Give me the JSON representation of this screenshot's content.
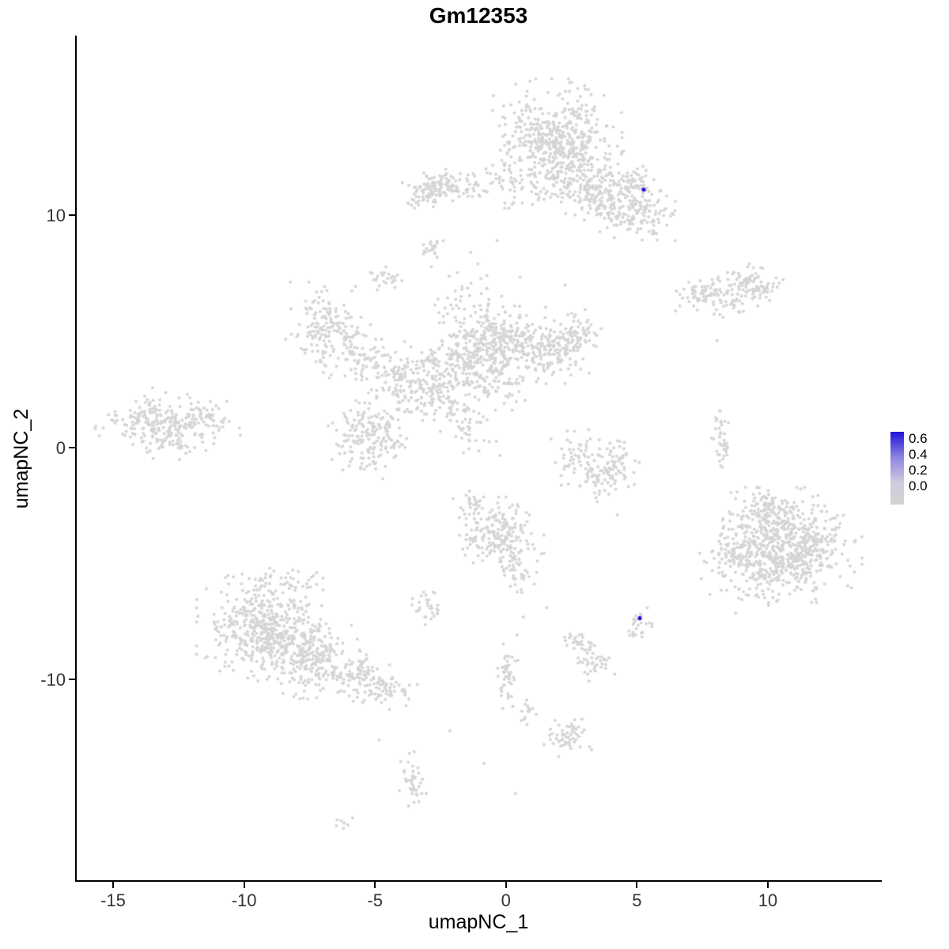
{
  "chart_data": {
    "type": "scatter",
    "title": "Gm12353",
    "xlabel": "umapNC_1",
    "ylabel": "umapNC_2",
    "x_range": [
      -16.45,
      14.35
    ],
    "y_range": [
      -18.7,
      17.73
    ],
    "x_ticks": {
      "values": [
        -15,
        -10,
        -5,
        0,
        5,
        10
      ],
      "labels": [
        "-15",
        "-10",
        "-5",
        "0",
        "5",
        "10"
      ]
    },
    "y_ticks": {
      "values": [
        10,
        0,
        -10
      ],
      "labels": [
        "10",
        "0",
        "-10"
      ]
    },
    "point_color": "#d5d5d5",
    "highlight_color": "#2414d6",
    "background": "#ffffff",
    "axis_color": "#000000",
    "seed": 7,
    "legend": {
      "ticks": [
        "0.6",
        "0.4",
        "0.2",
        "0.0"
      ],
      "low_color": "#d3d3d3",
      "high_color": "#1f14d6"
    },
    "clusters_columns": [
      "center_x",
      "center_y",
      "sd_x",
      "sd_y",
      "n_points",
      "rot_deg"
    ],
    "clusters": [
      [
        1.9,
        13.4,
        0.95,
        0.95,
        420,
        0
      ],
      [
        2.5,
        11.7,
        0.8,
        0.65,
        180,
        0
      ],
      [
        4.0,
        10.5,
        0.8,
        0.5,
        150,
        -25
      ],
      [
        5.3,
        10.1,
        0.55,
        0.45,
        70,
        0
      ],
      [
        4.9,
        11.3,
        0.5,
        0.4,
        55,
        0
      ],
      [
        0.3,
        11.6,
        0.6,
        0.5,
        60,
        0
      ],
      [
        -2.4,
        11.2,
        0.65,
        0.3,
        120,
        0
      ],
      [
        -3.3,
        10.8,
        0.3,
        0.25,
        25,
        0
      ],
      [
        -2.9,
        8.6,
        0.22,
        0.22,
        20,
        0
      ],
      [
        -4.7,
        7.3,
        0.3,
        0.2,
        25,
        0
      ],
      [
        7.5,
        6.6,
        0.55,
        0.28,
        80,
        0
      ],
      [
        9.4,
        7.0,
        0.55,
        0.35,
        90,
        0
      ],
      [
        8.6,
        6.0,
        0.35,
        0.2,
        20,
        0
      ],
      [
        -6.9,
        5.3,
        0.65,
        0.7,
        150,
        0
      ],
      [
        -5.6,
        4.0,
        0.55,
        0.55,
        70,
        0
      ],
      [
        -4.3,
        3.0,
        0.6,
        0.6,
        90,
        0
      ],
      [
        -3.0,
        2.5,
        0.6,
        0.7,
        110,
        0
      ],
      [
        -1.6,
        4.0,
        0.8,
        0.8,
        200,
        0
      ],
      [
        -0.2,
        4.6,
        0.8,
        0.7,
        200,
        0
      ],
      [
        1.5,
        4.3,
        0.8,
        0.6,
        170,
        0
      ],
      [
        2.6,
        4.9,
        0.45,
        0.45,
        60,
        0
      ],
      [
        -0.6,
        2.9,
        0.7,
        0.5,
        80,
        0
      ],
      [
        -1.7,
        1.2,
        0.35,
        0.8,
        60,
        35
      ],
      [
        -5.2,
        0.6,
        0.65,
        0.75,
        190,
        0
      ],
      [
        -1.6,
        6.6,
        0.8,
        0.5,
        35,
        0
      ],
      [
        -13.2,
        0.9,
        0.95,
        0.6,
        240,
        -12
      ],
      [
        -11.5,
        1.2,
        0.5,
        0.4,
        50,
        0
      ],
      [
        2.7,
        -0.4,
        0.4,
        0.5,
        50,
        0
      ],
      [
        3.5,
        -1.3,
        0.6,
        0.4,
        70,
        0
      ],
      [
        4.3,
        -0.5,
        0.3,
        0.45,
        40,
        0
      ],
      [
        8.2,
        0.3,
        0.18,
        0.6,
        40,
        0
      ],
      [
        10.8,
        -4.2,
        1.05,
        0.95,
        650,
        0
      ],
      [
        8.9,
        -4.8,
        0.6,
        0.9,
        130,
        0
      ],
      [
        9.6,
        -2.6,
        0.5,
        0.4,
        60,
        0
      ],
      [
        -0.3,
        -3.7,
        0.65,
        0.6,
        190,
        0
      ],
      [
        0.4,
        -5.3,
        0.35,
        0.5,
        45,
        0
      ],
      [
        -1.3,
        -2.5,
        0.3,
        0.3,
        25,
        0
      ],
      [
        -9.4,
        -7.8,
        0.95,
        0.9,
        420,
        0
      ],
      [
        -7.6,
        -9.0,
        0.9,
        0.7,
        260,
        -20
      ],
      [
        -5.6,
        -9.9,
        0.7,
        0.45,
        110,
        -20
      ],
      [
        -4.4,
        -10.5,
        0.4,
        0.3,
        40,
        0
      ],
      [
        -8.7,
        -5.8,
        0.9,
        0.4,
        50,
        0
      ],
      [
        -3.0,
        -6.9,
        0.28,
        0.33,
        30,
        0
      ],
      [
        5.0,
        -7.6,
        0.25,
        0.3,
        25,
        0
      ],
      [
        2.7,
        -8.4,
        0.3,
        0.25,
        30,
        0
      ],
      [
        3.2,
        -9.3,
        0.35,
        0.3,
        35,
        0
      ],
      [
        0.0,
        -9.9,
        0.18,
        0.7,
        45,
        0
      ],
      [
        2.3,
        -12.4,
        0.35,
        0.35,
        55,
        0
      ],
      [
        -3.7,
        -14.4,
        0.25,
        0.5,
        40,
        0
      ],
      [
        -6.3,
        -16.2,
        0.2,
        0.15,
        8,
        0
      ],
      [
        0.7,
        -11.3,
        0.2,
        0.3,
        15,
        0
      ]
    ],
    "extra_points": [
      [
        8.0,
        4.6
      ],
      [
        4.2,
        -2.9
      ],
      [
        2.2,
        7.0
      ],
      [
        6.4,
        8.9
      ],
      [
        -0.4,
        8.9
      ],
      [
        -1.4,
        8.4
      ],
      [
        0.6,
        -7.3
      ],
      [
        1.5,
        -6.9
      ],
      [
        -2.2,
        -12.2
      ],
      [
        -0.9,
        -13.6
      ],
      [
        0.3,
        -14.9
      ],
      [
        -4.9,
        -12.6
      ]
    ],
    "highlight_points": [
      {
        "x": 5.2,
        "y": 11.1,
        "value": 0.6
      },
      {
        "x": 5.05,
        "y": -7.35,
        "value": 0.6
      }
    ]
  }
}
